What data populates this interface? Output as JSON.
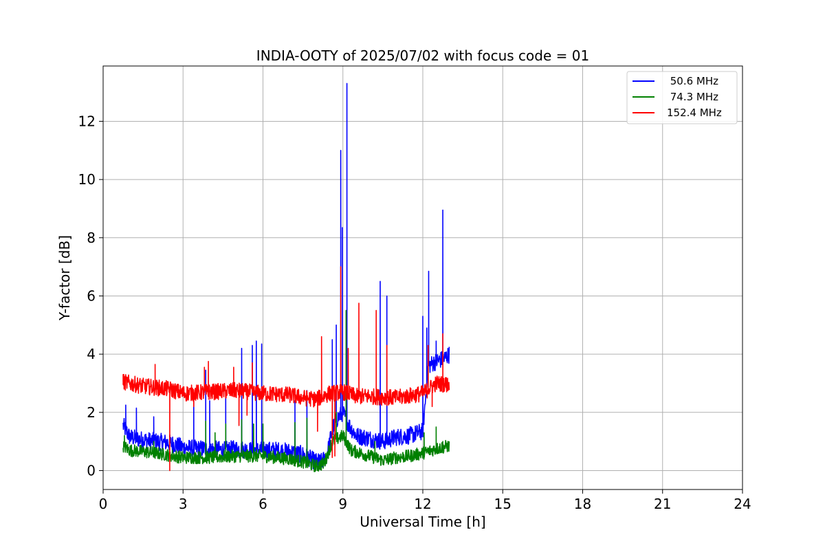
{
  "chart_data": {
    "type": "line",
    "title": "INDIA-OOTY of 2025/07/02 with focus code = 01",
    "xlabel": "Universal Time [h]",
    "ylabel": "Y-factor [dB]",
    "xlim": [
      0,
      24
    ],
    "ylim": [
      -0.65,
      13.9
    ],
    "xticks": [
      0,
      3,
      6,
      9,
      12,
      15,
      18,
      21,
      24
    ],
    "yticks": [
      0,
      2,
      4,
      6,
      8,
      10,
      12
    ],
    "grid": true,
    "legend_position": "top-right",
    "series": [
      {
        "name": " 50.6 MHz",
        "color": "#0000ff",
        "baseline": [
          [
            0.75,
            1.55
          ],
          [
            1.0,
            1.15
          ],
          [
            1.5,
            1.05
          ],
          [
            2.0,
            1.0
          ],
          [
            2.5,
            0.95
          ],
          [
            3.0,
            0.8
          ],
          [
            3.5,
            0.75
          ],
          [
            4.0,
            0.75
          ],
          [
            4.5,
            0.7
          ],
          [
            5.0,
            0.75
          ],
          [
            5.5,
            0.7
          ],
          [
            6.0,
            0.7
          ],
          [
            6.5,
            0.7
          ],
          [
            7.0,
            0.65
          ],
          [
            7.5,
            0.55
          ],
          [
            8.0,
            0.3
          ],
          [
            8.2,
            0.3
          ],
          [
            8.4,
            0.5
          ],
          [
            8.6,
            1.4
          ],
          [
            8.8,
            1.8
          ],
          [
            9.0,
            2.0
          ],
          [
            9.2,
            1.6
          ],
          [
            9.5,
            1.2
          ],
          [
            10.0,
            1.1
          ],
          [
            10.5,
            1.0
          ],
          [
            11.0,
            1.15
          ],
          [
            11.5,
            1.2
          ],
          [
            12.0,
            1.35
          ],
          [
            12.2,
            3.6
          ],
          [
            12.5,
            3.75
          ],
          [
            12.8,
            3.85
          ],
          [
            13.0,
            4.0
          ]
        ],
        "noise": 0.3,
        "spikes": [
          [
            0.85,
            2.25
          ],
          [
            1.25,
            2.15
          ],
          [
            1.9,
            1.85
          ],
          [
            3.4,
            2.4
          ],
          [
            3.85,
            3.45
          ],
          [
            4.0,
            2.4
          ],
          [
            4.6,
            2.6
          ],
          [
            5.2,
            4.2
          ],
          [
            5.6,
            4.3
          ],
          [
            5.75,
            4.45
          ],
          [
            5.95,
            4.35
          ],
          [
            7.2,
            2.4
          ],
          [
            7.65,
            2.75
          ],
          [
            8.6,
            4.5
          ],
          [
            8.75,
            5.0
          ],
          [
            8.92,
            11.0
          ],
          [
            8.98,
            8.35
          ],
          [
            9.15,
            13.3
          ],
          [
            10.4,
            6.5
          ],
          [
            10.65,
            6.0
          ],
          [
            12.0,
            5.3
          ],
          [
            12.15,
            4.9
          ],
          [
            12.22,
            6.85
          ],
          [
            12.5,
            4.45
          ],
          [
            12.75,
            8.95
          ]
        ]
      },
      {
        "name": " 74.3 MHz",
        "color": "#008000",
        "baseline": [
          [
            0.75,
            0.85
          ],
          [
            1.0,
            0.7
          ],
          [
            2.0,
            0.6
          ],
          [
            3.0,
            0.45
          ],
          [
            4.0,
            0.45
          ],
          [
            5.0,
            0.5
          ],
          [
            6.0,
            0.5
          ],
          [
            7.0,
            0.4
          ],
          [
            7.5,
            0.3
          ],
          [
            8.0,
            0.15
          ],
          [
            8.3,
            0.25
          ],
          [
            8.6,
            1.0
          ],
          [
            9.0,
            1.2
          ],
          [
            9.3,
            0.7
          ],
          [
            10.0,
            0.5
          ],
          [
            10.5,
            0.35
          ],
          [
            11.0,
            0.45
          ],
          [
            11.5,
            0.5
          ],
          [
            12.0,
            0.6
          ],
          [
            12.5,
            0.75
          ],
          [
            13.0,
            0.85
          ]
        ],
        "noise": 0.22,
        "spikes": [
          [
            0.8,
            1.2
          ],
          [
            1.9,
            1.0
          ],
          [
            3.85,
            1.7
          ],
          [
            4.2,
            1.3
          ],
          [
            4.6,
            1.6
          ],
          [
            5.2,
            1.75
          ],
          [
            5.65,
            1.6
          ],
          [
            6.0,
            1.6
          ],
          [
            7.2,
            1.65
          ],
          [
            7.65,
            1.8
          ],
          [
            8.75,
            2.0
          ],
          [
            9.12,
            5.5
          ],
          [
            10.2,
            1.0
          ],
          [
            12.05,
            1.3
          ],
          [
            12.5,
            1.5
          ],
          [
            12.75,
            1.0
          ]
        ]
      },
      {
        "name": "152.4 MHz",
        "color": "#ff0000",
        "baseline": [
          [
            0.75,
            3.05
          ],
          [
            1.5,
            2.9
          ],
          [
            2.5,
            2.8
          ],
          [
            3.0,
            2.65
          ],
          [
            4.0,
            2.7
          ],
          [
            5.0,
            2.75
          ],
          [
            6.0,
            2.65
          ],
          [
            7.0,
            2.6
          ],
          [
            7.5,
            2.5
          ],
          [
            8.0,
            2.45
          ],
          [
            8.5,
            2.65
          ],
          [
            9.0,
            2.7
          ],
          [
            9.5,
            2.55
          ],
          [
            10.0,
            2.55
          ],
          [
            11.0,
            2.5
          ],
          [
            12.0,
            2.65
          ],
          [
            12.5,
            3.0
          ],
          [
            13.0,
            2.95
          ]
        ],
        "noise": 0.28,
        "spikes": [
          [
            0.75,
            3.3
          ],
          [
            1.95,
            3.65
          ],
          [
            3.8,
            3.55
          ],
          [
            3.95,
            3.75
          ],
          [
            4.9,
            3.55
          ],
          [
            5.6,
            3.7
          ],
          [
            8.2,
            4.6
          ],
          [
            8.92,
            7.0
          ],
          [
            9.2,
            4.2
          ],
          [
            9.6,
            5.75
          ],
          [
            10.25,
            5.5
          ],
          [
            10.65,
            4.3
          ],
          [
            12.2,
            4.3
          ],
          [
            12.75,
            4.7
          ]
        ],
        "dips": [
          [
            2.5,
            0.0
          ],
          [
            3.4,
            2.2
          ],
          [
            5.1,
            1.55
          ],
          [
            5.4,
            1.9
          ],
          [
            8.05,
            1.35
          ],
          [
            8.6,
            0.45
          ],
          [
            8.7,
            0.5
          ],
          [
            12.35,
            2.2
          ]
        ]
      }
    ]
  }
}
